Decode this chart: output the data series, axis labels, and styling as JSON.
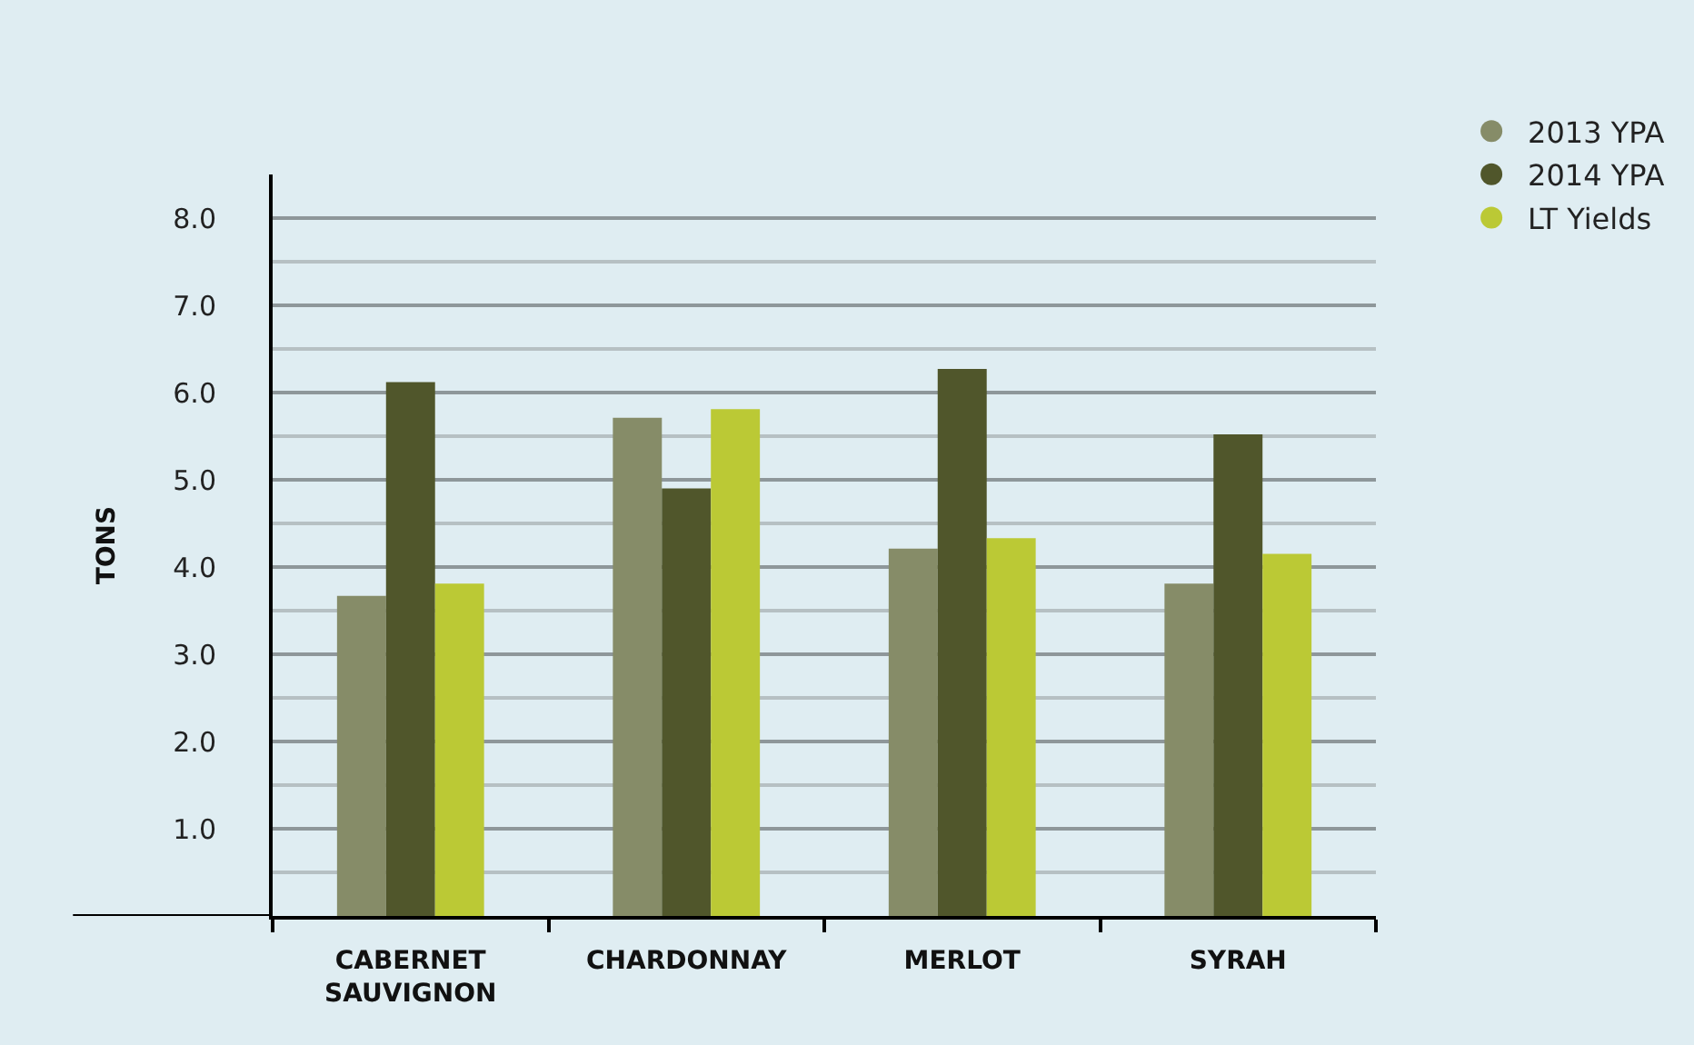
{
  "chart_data": {
    "type": "bar",
    "ylabel": "TONS",
    "categories": [
      "CABERNET SAUVIGNON",
      "CHARDONNAY",
      "MERLOT",
      "SYRAH"
    ],
    "series": [
      {
        "name": "2013 YPA",
        "color": "#868c68",
        "values": [
          3.67,
          5.71,
          4.21,
          3.81
        ]
      },
      {
        "name": "2014 YPA",
        "color": "#50562b",
        "values": [
          6.12,
          4.9,
          6.27,
          5.52
        ]
      },
      {
        "name": "LT Yields",
        "color": "#bbc935",
        "values": [
          3.81,
          5.81,
          4.33,
          4.15
        ]
      }
    ],
    "ylim": [
      0,
      8.5
    ],
    "yticks": [
      {
        "value": 1,
        "label": "1.0"
      },
      {
        "value": 2,
        "label": "2.0"
      },
      {
        "value": 3,
        "label": "3.0"
      },
      {
        "value": 4,
        "label": "4.0"
      },
      {
        "value": 5,
        "label": "5.0"
      },
      {
        "value": 6,
        "label": "6.0"
      },
      {
        "value": 7,
        "label": "7.0"
      },
      {
        "value": 8,
        "label": "8.0"
      }
    ],
    "grid": "y",
    "legend": "top right"
  }
}
